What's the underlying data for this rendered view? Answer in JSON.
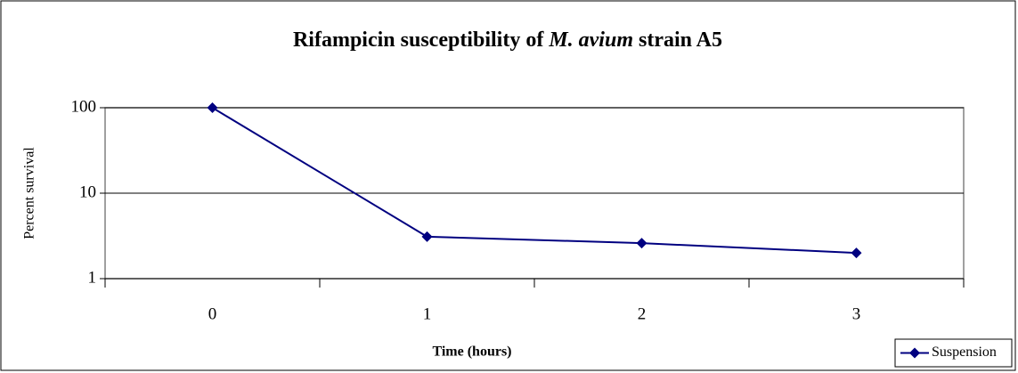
{
  "chart_data": {
    "type": "line",
    "title": [
      "Rifampicin susceptibility of ",
      "M. avium",
      " strain A5"
    ],
    "xlabel": "Time (hours)",
    "ylabel": "Percent survival",
    "categories": [
      "0",
      "1",
      "2",
      "3"
    ],
    "series": [
      {
        "name": "Suspension",
        "color": "#000080",
        "values": [
          100,
          3.1,
          2.6,
          2.0
        ]
      }
    ],
    "ylim": [
      1,
      100
    ],
    "yticks": [
      1,
      10,
      100
    ],
    "log_y": true,
    "grid": true,
    "legend": "lower right"
  }
}
